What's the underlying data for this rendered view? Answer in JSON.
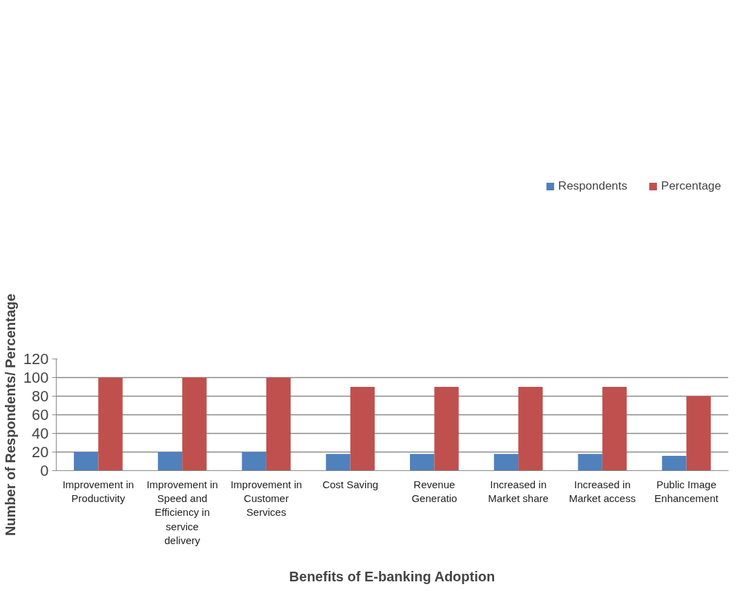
{
  "chart_data": {
    "type": "bar",
    "xlabel": "Benefits of E-banking Adoption",
    "ylabel": "Number of Respondents/ Percentage",
    "categories": [
      "Improvement in Productivity",
      "Improvement in Speed and Efficiency in service delivery",
      "Improvement in Customer Services",
      "Cost Saving",
      "Revenue Generatio",
      "Increased in Market share",
      "Increased in Market access",
      "Public Image Enhancement"
    ],
    "series": [
      {
        "name": "Respondents",
        "color": "#4f81bd",
        "values": [
          20,
          20,
          20,
          18,
          18,
          18,
          18,
          16
        ]
      },
      {
        "name": "Percentage",
        "color": "#c0504d",
        "values": [
          100,
          100,
          100,
          90,
          90,
          90,
          90,
          80
        ]
      }
    ],
    "ylim": [
      0,
      120
    ],
    "yticks": [
      0,
      20,
      40,
      60,
      80,
      100,
      120
    ],
    "grid": "y",
    "legend": "top right"
  }
}
